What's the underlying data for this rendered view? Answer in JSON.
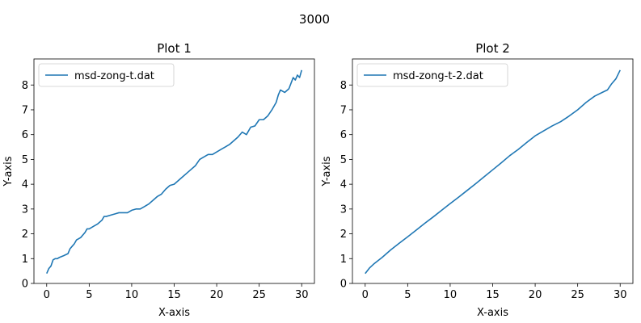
{
  "figure": {
    "suptitle": "3000"
  },
  "chart_data": [
    {
      "type": "line",
      "title": "Plot 1",
      "xlabel": "X-axis",
      "ylabel": "Y-axis",
      "xlim": [
        -1.5,
        31.5
      ],
      "ylim": [
        0,
        9.05
      ],
      "xticks": [
        0,
        5,
        10,
        15,
        20,
        25,
        30
      ],
      "yticks": [
        0,
        1,
        2,
        3,
        4,
        5,
        6,
        7,
        8
      ],
      "legend_position": "upper left",
      "series": [
        {
          "name": "msd-zong-t.dat",
          "color": "#1f77b4",
          "x": [
            0,
            0.25,
            0.5,
            0.75,
            1,
            1.25,
            1.5,
            2,
            2.5,
            2.75,
            3,
            3.25,
            3.5,
            4,
            4.5,
            4.75,
            5,
            5.5,
            6,
            6.5,
            6.75,
            7,
            7.5,
            8,
            8.5,
            9,
            9.5,
            10,
            10.5,
            11,
            11.5,
            12,
            12.5,
            13,
            13.5,
            14,
            14.5,
            15,
            15.5,
            16,
            16.5,
            17,
            17.5,
            18,
            18.5,
            19,
            19.5,
            20,
            20.5,
            21,
            21.5,
            22,
            22.5,
            23,
            23.5,
            24,
            24.5,
            25,
            25.5,
            26,
            26.5,
            27,
            27.25,
            27.5,
            28,
            28.5,
            29,
            29.25,
            29.5,
            29.75,
            30
          ],
          "y": [
            0.4,
            0.6,
            0.7,
            0.95,
            1.0,
            1.0,
            1.05,
            1.12,
            1.2,
            1.4,
            1.5,
            1.6,
            1.75,
            1.85,
            2.05,
            2.2,
            2.2,
            2.3,
            2.4,
            2.55,
            2.7,
            2.7,
            2.75,
            2.8,
            2.85,
            2.85,
            2.85,
            2.95,
            3.0,
            3.0,
            3.1,
            3.2,
            3.35,
            3.5,
            3.6,
            3.8,
            3.95,
            4.0,
            4.15,
            4.3,
            4.45,
            4.6,
            4.75,
            5.0,
            5.1,
            5.2,
            5.2,
            5.3,
            5.4,
            5.5,
            5.6,
            5.75,
            5.9,
            6.1,
            6.0,
            6.3,
            6.35,
            6.6,
            6.6,
            6.75,
            7.0,
            7.3,
            7.6,
            7.8,
            7.7,
            7.85,
            8.3,
            8.2,
            8.4,
            8.3,
            8.6
          ]
        }
      ]
    },
    {
      "type": "line",
      "title": "Plot 2",
      "xlabel": "X-axis",
      "ylabel": "Y-axis",
      "xlim": [
        -1.5,
        31.5
      ],
      "ylim": [
        0,
        9.05
      ],
      "xticks": [
        0,
        5,
        10,
        15,
        20,
        25,
        30
      ],
      "yticks": [
        0,
        1,
        2,
        3,
        4,
        5,
        6,
        7,
        8
      ],
      "legend_position": "upper left",
      "series": [
        {
          "name": "msd-zong-t-2.dat",
          "color": "#1f77b4",
          "x": [
            0,
            0.5,
            1,
            2,
            3,
            4,
            5,
            6,
            7,
            8,
            9,
            10,
            11,
            12,
            13,
            14,
            15,
            16,
            17,
            18,
            19,
            20,
            21,
            22,
            23,
            24,
            25,
            26,
            27,
            28,
            28.5,
            29,
            29.5,
            30
          ],
          "y": [
            0.4,
            0.62,
            0.78,
            1.05,
            1.35,
            1.62,
            1.88,
            2.15,
            2.42,
            2.68,
            2.95,
            3.22,
            3.48,
            3.75,
            4.02,
            4.3,
            4.58,
            4.86,
            5.15,
            5.4,
            5.68,
            5.95,
            6.15,
            6.35,
            6.52,
            6.75,
            7.0,
            7.3,
            7.55,
            7.72,
            7.8,
            8.05,
            8.25,
            8.6
          ]
        }
      ]
    }
  ]
}
